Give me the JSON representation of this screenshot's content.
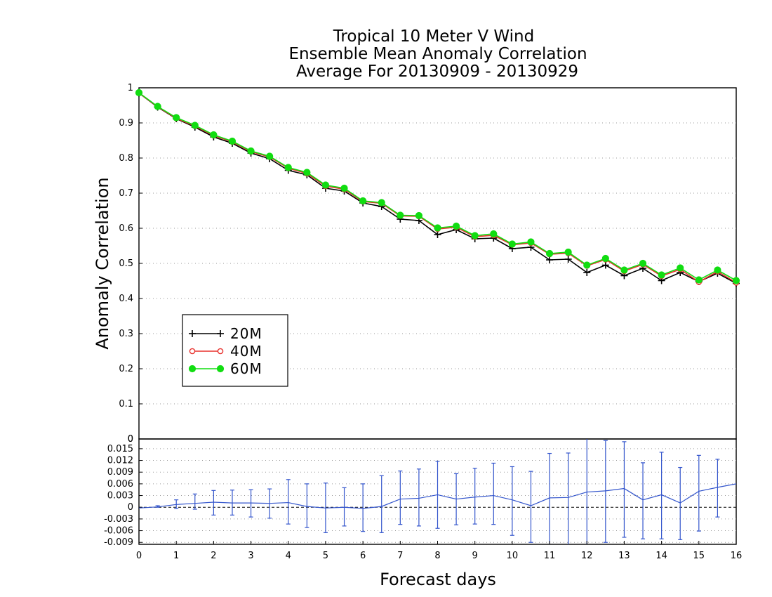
{
  "chart_data": [
    {
      "type": "line",
      "title": [
        "Tropical 10 Meter V Wind",
        "Ensemble Mean Anomaly Correlation",
        "Average For 20130909 - 20130929"
      ],
      "xlabel": "Forecast days",
      "ylabel": "Anomaly Correlation",
      "xlim": [
        0,
        16
      ],
      "ylim": [
        0,
        1
      ],
      "x_ticks": [
        "0",
        "1",
        "2",
        "3",
        "4",
        "5",
        "6",
        "7",
        "8",
        "9",
        "10",
        "11",
        "12",
        "13",
        "14",
        "15",
        "16"
      ],
      "y_ticks": [
        "0",
        "0.1",
        "0.2",
        "0.3",
        "0.4",
        "0.5",
        "0.6",
        "0.7",
        "0.8",
        "0.9",
        "1"
      ],
      "grid": true,
      "legend_position": "center-left",
      "x": [
        0,
        0.5,
        1,
        1.5,
        2,
        2.5,
        3,
        3.5,
        4,
        4.5,
        5,
        5.5,
        6,
        6.5,
        7,
        7.5,
        8,
        8.5,
        9,
        9.5,
        10,
        10.5,
        11,
        11.5,
        12,
        12.5,
        13,
        13.5,
        14,
        14.5,
        15,
        15.5,
        16
      ],
      "series": [
        {
          "name": "20M",
          "color": "#000000",
          "marker": "plus",
          "values": [
            0.985,
            0.945,
            0.912,
            0.888,
            0.86,
            0.842,
            0.814,
            0.798,
            0.765,
            0.752,
            0.714,
            0.706,
            0.672,
            0.662,
            0.626,
            0.622,
            0.582,
            0.596,
            0.57,
            0.572,
            0.542,
            0.546,
            0.51,
            0.512,
            0.474,
            0.495,
            0.465,
            0.486,
            0.451,
            0.474,
            0.448,
            0.472,
            0.443
          ]
        },
        {
          "name": "40M",
          "color": "#e8302c",
          "marker": "open-circle",
          "values": [
            0.985,
            0.946,
            0.913,
            0.891,
            0.864,
            0.846,
            0.818,
            0.803,
            0.771,
            0.756,
            0.72,
            0.711,
            0.676,
            0.671,
            0.635,
            0.634,
            0.598,
            0.603,
            0.576,
            0.58,
            0.553,
            0.558,
            0.526,
            0.529,
            0.493,
            0.511,
            0.478,
            0.497,
            0.464,
            0.483,
            0.447,
            0.477,
            0.445
          ]
        },
        {
          "name": "60M",
          "color": "#11dd11",
          "marker": "filled-circle",
          "values": [
            0.986,
            0.947,
            0.915,
            0.893,
            0.866,
            0.848,
            0.82,
            0.805,
            0.773,
            0.759,
            0.723,
            0.714,
            0.678,
            0.673,
            0.637,
            0.636,
            0.601,
            0.606,
            0.579,
            0.584,
            0.555,
            0.561,
            0.528,
            0.532,
            0.495,
            0.514,
            0.481,
            0.5,
            0.467,
            0.487,
            0.453,
            0.481,
            0.451
          ]
        }
      ]
    },
    {
      "type": "line",
      "xlim": [
        0,
        16
      ],
      "ylim": [
        -0.0095,
        0.0175
      ],
      "y_ticks": [
        "0.015",
        "0.012",
        "0.009",
        "0.006",
        "0.003",
        "0",
        "-0.003",
        "-0.006",
        "-0.009"
      ],
      "grid": true,
      "series": [
        {
          "color": "#3355cc",
          "x": [
            0,
            0.5,
            1,
            1.5,
            2,
            2.5,
            3,
            3.5,
            4,
            4.5,
            5,
            5.5,
            6,
            6.5,
            7,
            7.5,
            8,
            8.5,
            9,
            9.5,
            10,
            10.5,
            11,
            11.5,
            12,
            12.5,
            13,
            13.5,
            14,
            14.5,
            15,
            15.5,
            16
          ],
          "values": [
            -0.0002,
            0.0001,
            0.0007,
            0.001,
            0.0013,
            0.0011,
            0.0011,
            0.001,
            0.0012,
            0.0002,
            -0.0002,
            0,
            -0.0003,
            0.0002,
            0.0021,
            0.0023,
            0.0032,
            0.0021,
            0.0026,
            0.003,
            0.0019,
            0.0004,
            0.0024,
            0.0025,
            0.0039,
            0.0042,
            0.0048,
            0.0019,
            0.0032,
            0.0011,
            0.0041,
            0.0051,
            0.006
          ],
          "error_low": [
            null,
            0,
            -0.0003,
            -0.0005,
            -0.002,
            -0.002,
            -0.0025,
            -0.0028,
            -0.0043,
            -0.0052,
            -0.0065,
            -0.0048,
            -0.0062,
            -0.0065,
            -0.0044,
            -0.0048,
            -0.0054,
            -0.0045,
            -0.0043,
            -0.0044,
            -0.0072,
            -0.009,
            -0.0095,
            -0.0095,
            -0.0095,
            -0.009,
            -0.0077,
            -0.0081,
            -0.0081,
            -0.0083,
            -0.0061,
            -0.0025,
            null
          ],
          "error_high": [
            null,
            0.0004,
            0.0019,
            0.0034,
            0.0043,
            0.0044,
            0.0045,
            0.0047,
            0.0071,
            0.006,
            0.0062,
            0.005,
            0.006,
            0.0081,
            0.0093,
            0.0098,
            0.0118,
            0.0086,
            0.01,
            0.0113,
            0.0104,
            0.0092,
            0.0138,
            0.0139,
            0.0175,
            0.0171,
            0.0168,
            0.0114,
            0.0141,
            0.0102,
            0.0133,
            0.0123,
            null
          ]
        }
      ]
    }
  ]
}
